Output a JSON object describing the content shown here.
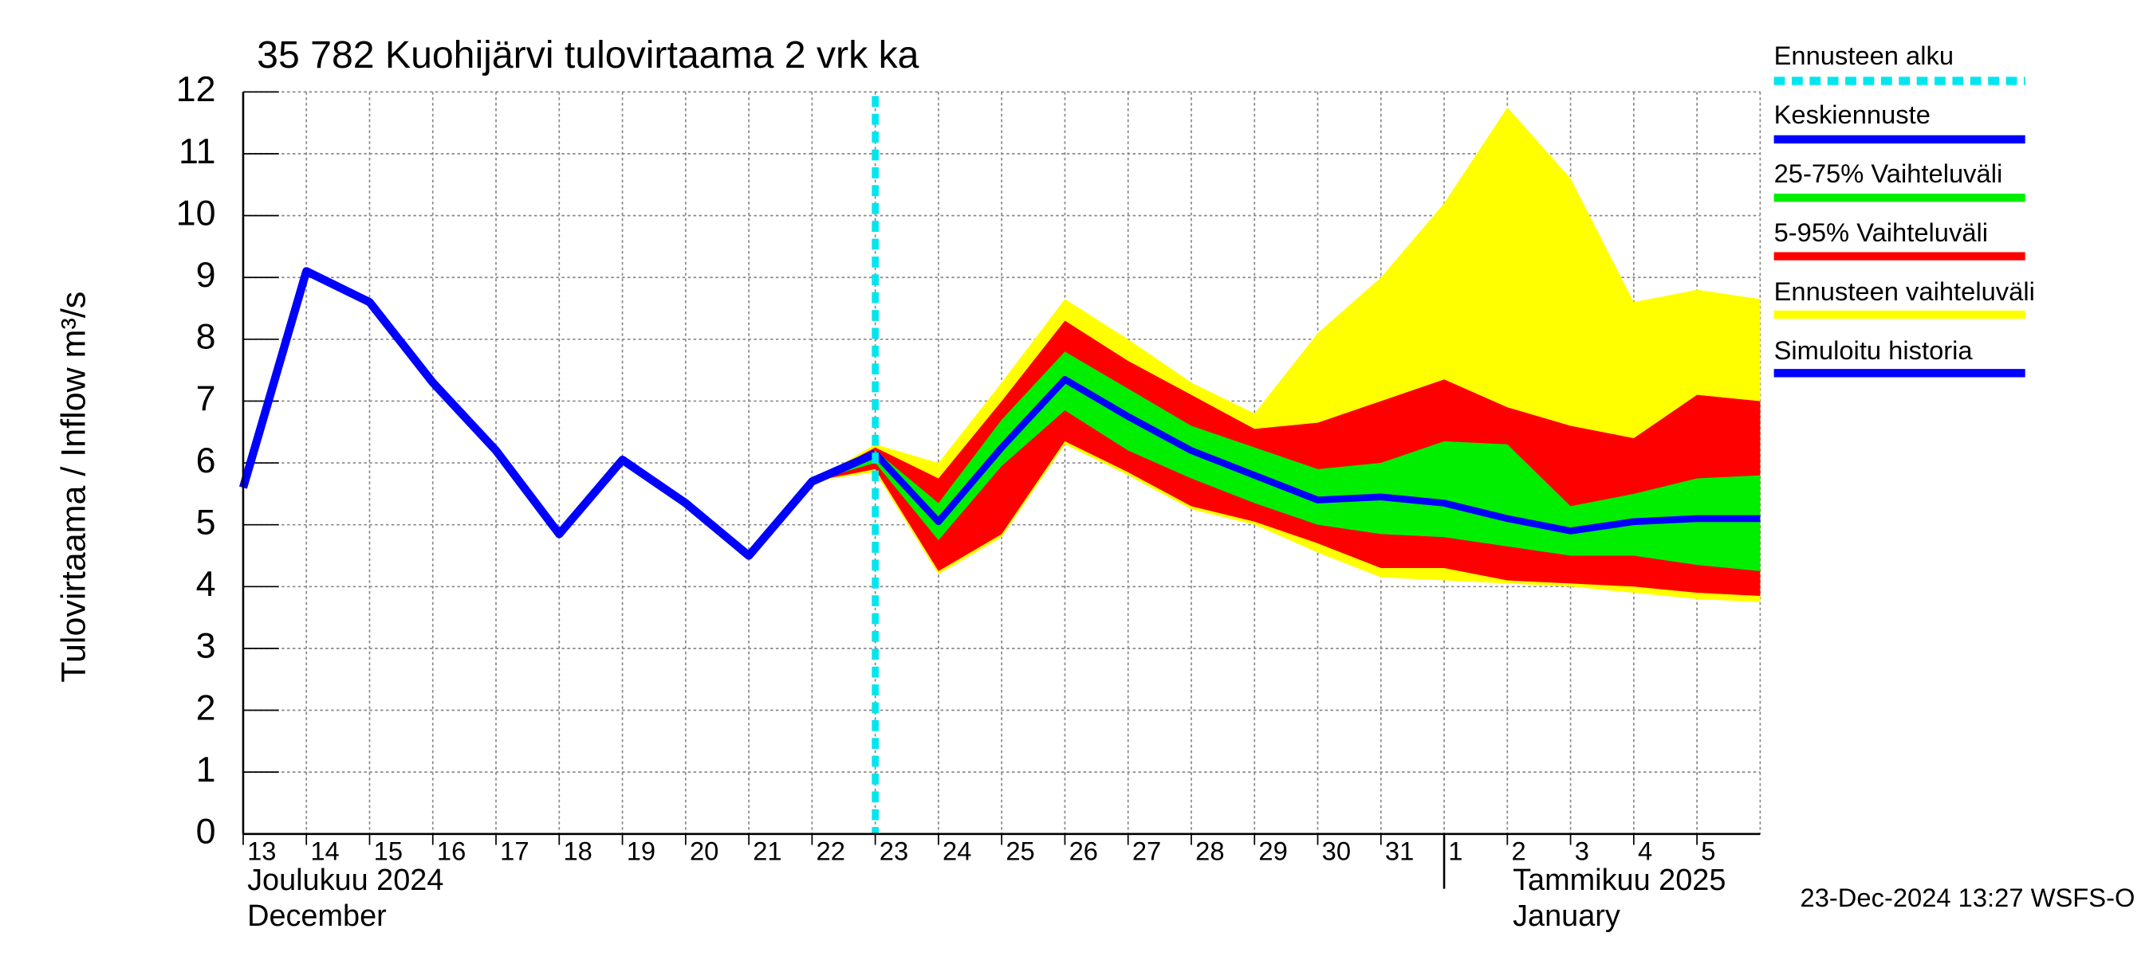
{
  "chart_data": {
    "type": "line",
    "title": "35 782 Kuohijärvi tulovirtaama 2 vrk ka",
    "y_label": "Tulovirtaama / Inflow    m³/s",
    "x": [
      "2024-12-13",
      "2024-12-14",
      "2024-12-15",
      "2024-12-16",
      "2024-12-17",
      "2024-12-18",
      "2024-12-19",
      "2024-12-20",
      "2024-12-21",
      "2024-12-22",
      "2024-12-23",
      "2024-12-24",
      "2024-12-25",
      "2024-12-26",
      "2024-12-27",
      "2024-12-28",
      "2024-12-29",
      "2024-12-30",
      "2024-12-31",
      "2025-01-01",
      "2025-01-02",
      "2025-01-03",
      "2025-01-04",
      "2025-01-05",
      "2025-01-06"
    ],
    "xlim": [
      "2024-12-13",
      "2025-01-06"
    ],
    "xticks": [
      {
        "value": "2024-12-13",
        "label": "13"
      },
      {
        "value": "2024-12-14",
        "label": "14"
      },
      {
        "value": "2024-12-15",
        "label": "15"
      },
      {
        "value": "2024-12-16",
        "label": "16"
      },
      {
        "value": "2024-12-17",
        "label": "17"
      },
      {
        "value": "2024-12-18",
        "label": "18"
      },
      {
        "value": "2024-12-19",
        "label": "19"
      },
      {
        "value": "2024-12-20",
        "label": "20"
      },
      {
        "value": "2024-12-21",
        "label": "21"
      },
      {
        "value": "2024-12-22",
        "label": "22"
      },
      {
        "value": "2024-12-23",
        "label": "23"
      },
      {
        "value": "2024-12-24",
        "label": "24"
      },
      {
        "value": "2024-12-25",
        "label": "25"
      },
      {
        "value": "2024-12-26",
        "label": "26"
      },
      {
        "value": "2024-12-27",
        "label": "27"
      },
      {
        "value": "2024-12-28",
        "label": "28"
      },
      {
        "value": "2024-12-29",
        "label": "29"
      },
      {
        "value": "2024-12-30",
        "label": "30"
      },
      {
        "value": "2024-12-31",
        "label": "31"
      },
      {
        "value": "2025-01-01",
        "label": "1"
      },
      {
        "value": "2025-01-02",
        "label": "2"
      },
      {
        "value": "2025-01-03",
        "label": "3"
      },
      {
        "value": "2025-01-04",
        "label": "4"
      },
      {
        "value": "2025-01-05",
        "label": "5"
      }
    ],
    "months": [
      {
        "value": "2024-12-13",
        "label": "Joulukuu  2024",
        "label2": "December"
      },
      {
        "value": "2025-01-01",
        "label": "Tammikuu  2025",
        "label2": "January"
      }
    ],
    "ylim": [
      0,
      12
    ],
    "yticks": [
      0,
      1,
      2,
      3,
      4,
      5,
      6,
      7,
      8,
      9,
      10,
      11,
      12
    ],
    "grid": true,
    "forecast_start": {
      "name": "Ennusteen alku",
      "x": "2024-12-23",
      "color": "#00e5ee"
    },
    "series": [
      {
        "name": "Ennusteen vaihteluväli",
        "kind": "band",
        "color": "#ffff00",
        "upper": [
          null,
          null,
          null,
          null,
          null,
          null,
          null,
          null,
          null,
          5.7,
          6.3,
          6.0,
          7.3,
          8.65,
          8.0,
          7.3,
          6.8,
          8.1,
          9.0,
          10.2,
          11.75,
          10.6,
          8.6,
          8.8,
          8.65
        ],
        "lower": [
          null,
          null,
          null,
          null,
          null,
          null,
          null,
          null,
          null,
          5.7,
          5.85,
          4.2,
          4.8,
          6.3,
          5.8,
          5.25,
          5.0,
          4.55,
          4.15,
          4.1,
          4.05,
          4.0,
          3.9,
          3.8,
          3.75
        ]
      },
      {
        "name": "5-95% Vaihteluväli",
        "kind": "band",
        "color": "#ff0000",
        "upper": [
          null,
          null,
          null,
          null,
          null,
          null,
          null,
          null,
          null,
          5.7,
          6.25,
          5.75,
          7.0,
          8.3,
          7.65,
          7.1,
          6.55,
          6.65,
          7.0,
          7.35,
          6.9,
          6.6,
          6.4,
          7.1,
          7.0
        ],
        "lower": [
          null,
          null,
          null,
          null,
          null,
          null,
          null,
          null,
          null,
          5.7,
          5.9,
          4.25,
          4.85,
          6.35,
          5.85,
          5.3,
          5.05,
          4.7,
          4.3,
          4.3,
          4.1,
          4.05,
          4.0,
          3.9,
          3.85
        ]
      },
      {
        "name": "25-75% Vaihteluväli",
        "kind": "band",
        "color": "#00ee00",
        "upper": [
          null,
          null,
          null,
          null,
          null,
          null,
          null,
          null,
          null,
          5.7,
          6.2,
          5.35,
          6.7,
          7.8,
          7.2,
          6.6,
          6.25,
          5.9,
          6.0,
          6.35,
          6.3,
          5.3,
          5.5,
          5.75,
          5.8
        ],
        "lower": [
          null,
          null,
          null,
          null,
          null,
          null,
          null,
          null,
          null,
          5.7,
          6.0,
          4.75,
          5.95,
          6.85,
          6.2,
          5.75,
          5.35,
          5.0,
          4.85,
          4.8,
          4.65,
          4.5,
          4.5,
          4.35,
          4.25
        ]
      },
      {
        "name": "Keskiennuste",
        "kind": "line",
        "color": "#0000ff",
        "values": [
          null,
          null,
          null,
          null,
          null,
          null,
          null,
          null,
          null,
          null,
          6.15,
          5.05,
          6.25,
          7.35,
          6.75,
          6.2,
          5.8,
          5.4,
          5.45,
          5.35,
          5.1,
          4.9,
          5.05,
          5.1,
          5.1
        ]
      },
      {
        "name": "Simuloitu historia",
        "kind": "line",
        "color": "#0000ff",
        "values": [
          5.6,
          9.1,
          8.6,
          7.3,
          6.2,
          4.85,
          6.05,
          5.35,
          4.5,
          5.7,
          6.15,
          null,
          null,
          null,
          null,
          null,
          null,
          null,
          null,
          null,
          null,
          null,
          null,
          null,
          null
        ]
      }
    ],
    "timestamp": "23-Dec-2024 13:27 WSFS-O"
  }
}
